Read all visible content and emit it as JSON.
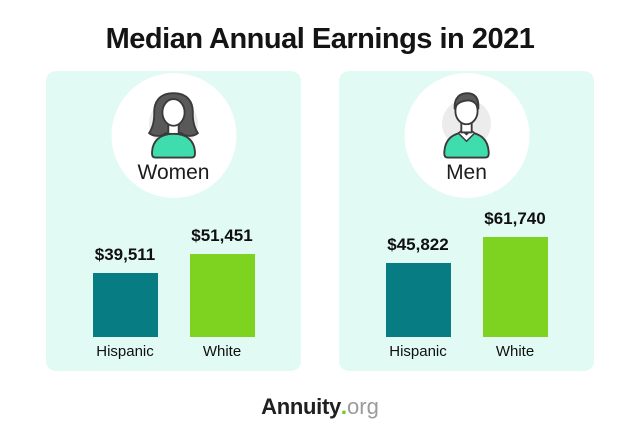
{
  "title": "Median Annual Earnings in 2021",
  "colors": {
    "panel_bg": "#E2FAF4",
    "hispanic_bar": "#077C83",
    "white_bar": "#7ED321",
    "avatar_shirt": "#3FDCAE",
    "logo_dot_green": "#6CC72C"
  },
  "panels": [
    {
      "label": "Women",
      "avatar_icon": "woman-avatar-icon",
      "bars": [
        {
          "category": "Hispanic",
          "value": 39511,
          "value_label": "$39,511",
          "color": "#077C83"
        },
        {
          "category": "White",
          "value": 51451,
          "value_label": "$51,451",
          "color": "#7ED321"
        }
      ]
    },
    {
      "label": "Men",
      "avatar_icon": "man-avatar-icon",
      "bars": [
        {
          "category": "Hispanic",
          "value": 45822,
          "value_label": "$45,822",
          "color": "#077C83"
        },
        {
          "category": "White",
          "value": 61740,
          "value_label": "$61,740",
          "color": "#7ED321"
        }
      ]
    }
  ],
  "footer": {
    "brand": "Annuity",
    "dot": ".",
    "suffix": "org"
  },
  "chart_data": {
    "type": "bar",
    "title": "Median Annual Earnings in 2021",
    "categories": [
      "Hispanic",
      "White"
    ],
    "series": [
      {
        "name": "Women",
        "values": [
          39511,
          51451
        ],
        "value_labels": [
          "$39,511",
          "$51,451"
        ]
      },
      {
        "name": "Men",
        "values": [
          45822,
          61740
        ],
        "value_labels": [
          "$45,822",
          "$61,740"
        ]
      }
    ],
    "bar_colors": {
      "Hispanic": "#077C83",
      "White": "#7ED321"
    },
    "ylim": [
      0,
      61740
    ],
    "grid": false,
    "legend": "none",
    "source_brand": "Annuity.org"
  }
}
